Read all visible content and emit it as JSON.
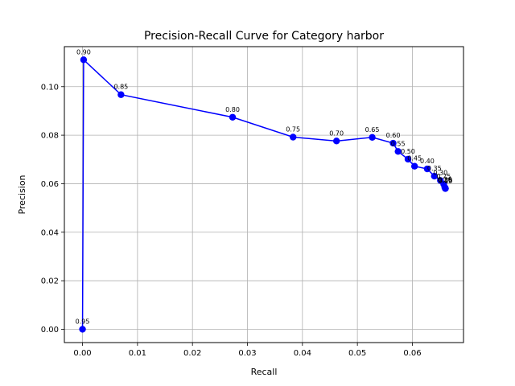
{
  "chart_data": {
    "type": "line",
    "title": "Precision-Recall Curve for Category harbor",
    "xlabel": "Recall",
    "ylabel": "Precision",
    "xlim": [
      -0.0033,
      0.0693
    ],
    "ylim": [
      -0.0055,
      0.1165
    ],
    "xticks": [
      0.0,
      0.01,
      0.02,
      0.03,
      0.04,
      0.05,
      0.06
    ],
    "yticks": [
      0.0,
      0.02,
      0.04,
      0.06,
      0.08,
      0.1
    ],
    "xtick_labels": [
      "0.00",
      "0.01",
      "0.02",
      "0.03",
      "0.04",
      "0.05",
      "0.06"
    ],
    "ytick_labels": [
      "0.00",
      "0.02",
      "0.04",
      "0.06",
      "0.08",
      "0.10"
    ],
    "grid": true,
    "legend": false,
    "line_color": "#0000ff",
    "series": [
      {
        "x": [
          0.0,
          0.0002,
          0.007,
          0.0273,
          0.0383,
          0.0462,
          0.0527,
          0.0565,
          0.0574,
          0.0592,
          0.0604,
          0.0627,
          0.064,
          0.0651,
          0.0657,
          0.0659,
          0.066,
          0.066,
          0.066
        ],
        "y": [
          0.0,
          0.1111,
          0.0967,
          0.0874,
          0.0792,
          0.0776,
          0.0791,
          0.0767,
          0.0733,
          0.0701,
          0.0672,
          0.0661,
          0.0631,
          0.0613,
          0.0598,
          0.0585,
          0.0581,
          0.058,
          0.058
        ],
        "labels": [
          "0.95",
          "0.90",
          "0.85",
          "0.80",
          "0.75",
          "0.70",
          "0.65",
          "0.60",
          "0.55",
          "0.50",
          "0.45",
          "0.40",
          "0.35",
          "0.30",
          "0.25",
          "0.20",
          "0.15",
          "0.10",
          "0.05"
        ]
      }
    ]
  }
}
